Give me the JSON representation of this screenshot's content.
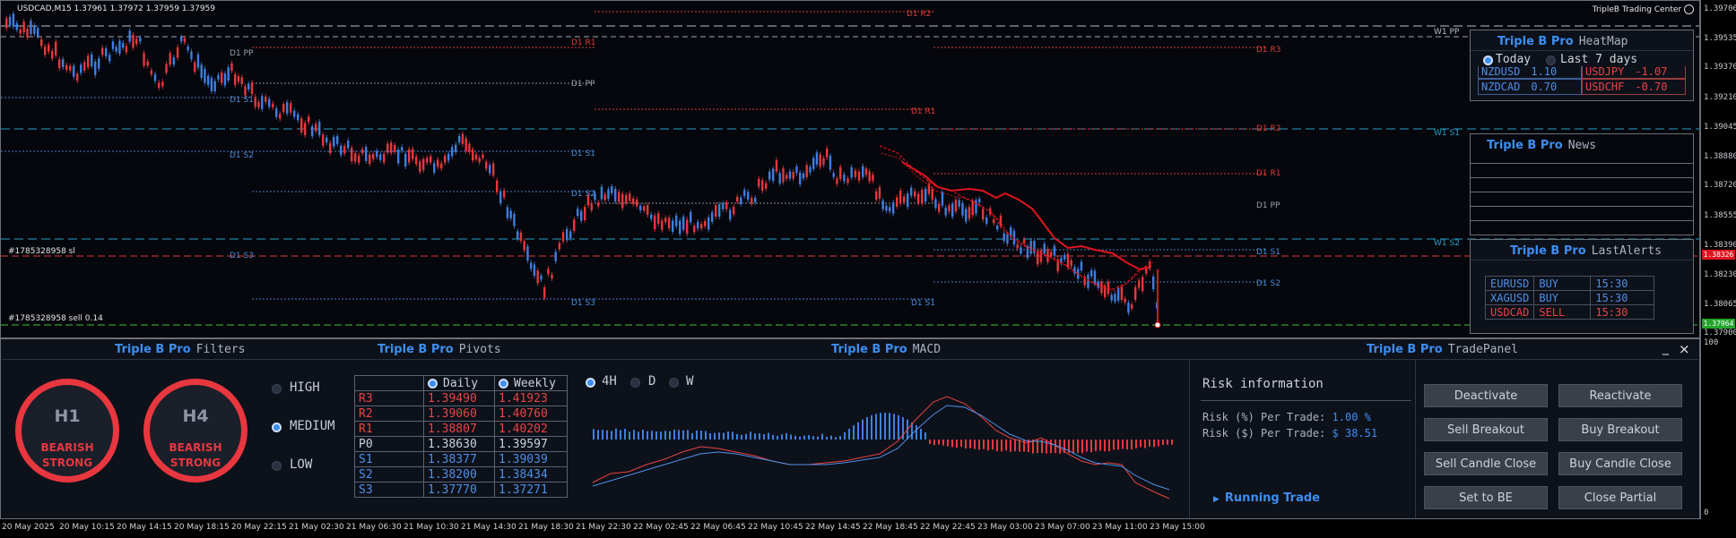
{
  "chart": {
    "title": "USDCAD,M15  1.37961 1.37972 1.37959 1.37959",
    "brand": "TripleB Trading Center",
    "price_labels": [
      "1.39700",
      "1.39535",
      "1.39370",
      "1.39210",
      "1.39045",
      "1.38880",
      "1.38720",
      "1.38555",
      "1.38390",
      "1.38230",
      "1.38065",
      "1.37900"
    ],
    "current_price_tag": "1.38326",
    "bid_price_tag": "1.37964",
    "order_sl_label": "#1785328958 sl",
    "order_sell_label": "#1785328958 sell 0.14",
    "levels": {
      "d1r2": "D1 R2",
      "d1r1": "D1 R1",
      "d1pp": "D1 PP",
      "d1s1": "D1 S1",
      "d1s2": "D1 S2",
      "d1s3": "D1 S3",
      "d1r3": "D1 R3",
      "w1pp": "W1 PP",
      "w1s1": "W1 S1",
      "w1s2": "W1 S2"
    }
  },
  "heatmap": {
    "brand": "Triple B Pro",
    "title": "HeatMap",
    "today_label": "Today",
    "last7_label": "Last 7 days",
    "rows": [
      {
        "pair": "NZDUSD",
        "val": "1.10",
        "pair2": "USDJPY",
        "val2": "-1.07"
      },
      {
        "pair": "NZDCAD",
        "val": "0.70",
        "pair2": "USDCHF",
        "val2": "-0.70"
      }
    ]
  },
  "news": {
    "brand": "Triple B Pro",
    "title": "News"
  },
  "alerts": {
    "brand": "Triple B Pro",
    "title": "LastAlerts",
    "rows": [
      {
        "pair": "EURUSD",
        "side": "BUY",
        "time": "15:30"
      },
      {
        "pair": "XAGUSD",
        "side": "BUY",
        "time": "15:30"
      },
      {
        "pair": "USDCAD",
        "side": "SELL",
        "time": "15:30"
      }
    ]
  },
  "filters": {
    "brand": "Triple B Pro",
    "title": "Filters",
    "h1": {
      "tf": "H1",
      "state": "BEARISH",
      "strength": "STRONG"
    },
    "h4": {
      "tf": "H4",
      "state": "BEARISH",
      "strength": "STRONG"
    },
    "options": [
      "HIGH",
      "MEDIUM",
      "LOW"
    ]
  },
  "pivots": {
    "brand": "Triple B Pro",
    "title": "Pivots",
    "headers": [
      "",
      "Daily",
      "Weekly"
    ],
    "rows": [
      [
        "R3",
        "1.39490",
        "1.41923"
      ],
      [
        "R2",
        "1.39060",
        "1.40760"
      ],
      [
        "R1",
        "1.38807",
        "1.40202"
      ],
      [
        "P0",
        "1.38630",
        "1.39597"
      ],
      [
        "S1",
        "1.38377",
        "1.39039"
      ],
      [
        "S2",
        "1.38200",
        "1.38434"
      ],
      [
        "S3",
        "1.37770",
        "1.37271"
      ]
    ]
  },
  "macd": {
    "brand": "Triple B Pro",
    "title": "MACD",
    "tfs": [
      "4H",
      "D",
      "W"
    ]
  },
  "tradepanel": {
    "brand": "Triple B Pro",
    "title": "TradePanel",
    "minimize": "_",
    "close": "×",
    "risk_title": "Risk information",
    "risk_pct_label": "Risk (%) Per Trade:",
    "risk_pct": "1.00 %",
    "risk_usd_label": "Risk ($) Per Trade:",
    "risk_usd": "$ 38.51",
    "running": "Running Trade",
    "buttons": [
      "Deactivate",
      "Reactivate",
      "Sell Breakout",
      "Buy Breakout",
      "Sell Candle Close",
      "Buy Candle Close",
      "Set to BE",
      "Close Partial"
    ]
  },
  "time_labels": [
    "20 May 2025",
    "20 May 10:15",
    "20 May 14:15",
    "20 May 18:15",
    "20 May 22:15",
    "21 May 02:30",
    "21 May 06:30",
    "21 May 10:30",
    "21 May 14:30",
    "21 May 18:30",
    "21 May 22:30",
    "22 May 02:45",
    "22 May 06:45",
    "22 May 10:45",
    "22 May 14:45",
    "22 May 18:45",
    "22 May 22:45",
    "23 May 03:00",
    "23 May 07:00",
    "23 May 11:00",
    "23 May 15:00"
  ],
  "sub_axis": {
    "top": "100",
    "bottom": "0"
  }
}
